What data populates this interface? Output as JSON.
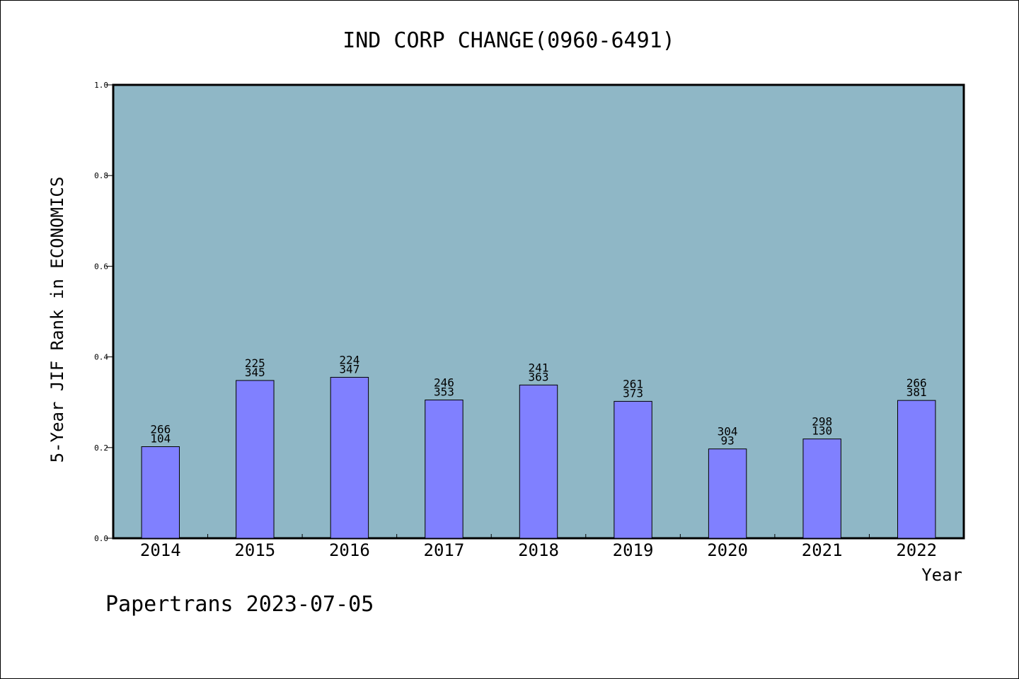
{
  "chart_data": {
    "type": "bar",
    "title": "IND CORP CHANGE(0960-6491)",
    "xlabel": "Year",
    "ylabel": "5-Year JIF Rank in ECONOMICS",
    "ylim": [
      0,
      1.0
    ],
    "yticks": [
      "0.0",
      "0.2",
      "0.4",
      "0.6",
      "0.8",
      "1.0"
    ],
    "categories": [
      "2014",
      "2015",
      "2016",
      "2017",
      "2018",
      "2019",
      "2020",
      "2021",
      "2022"
    ],
    "values": [
      0.202,
      0.348,
      0.355,
      0.305,
      0.338,
      0.302,
      0.197,
      0.219,
      0.304
    ],
    "label_top": [
      "266",
      "225",
      "224",
      "246",
      "241",
      "261",
      "304",
      "298",
      "266"
    ],
    "label_bottom": [
      "104",
      "345",
      "347",
      "353",
      "363",
      "373",
      "93",
      "130",
      "381"
    ],
    "grid": false,
    "legend": "none",
    "colors": {
      "plot_background": "#8fb7c6",
      "bar_fill": "#8080ff",
      "bar_stroke": "#000000"
    }
  },
  "footer": "Papertrans 2023-07-05"
}
